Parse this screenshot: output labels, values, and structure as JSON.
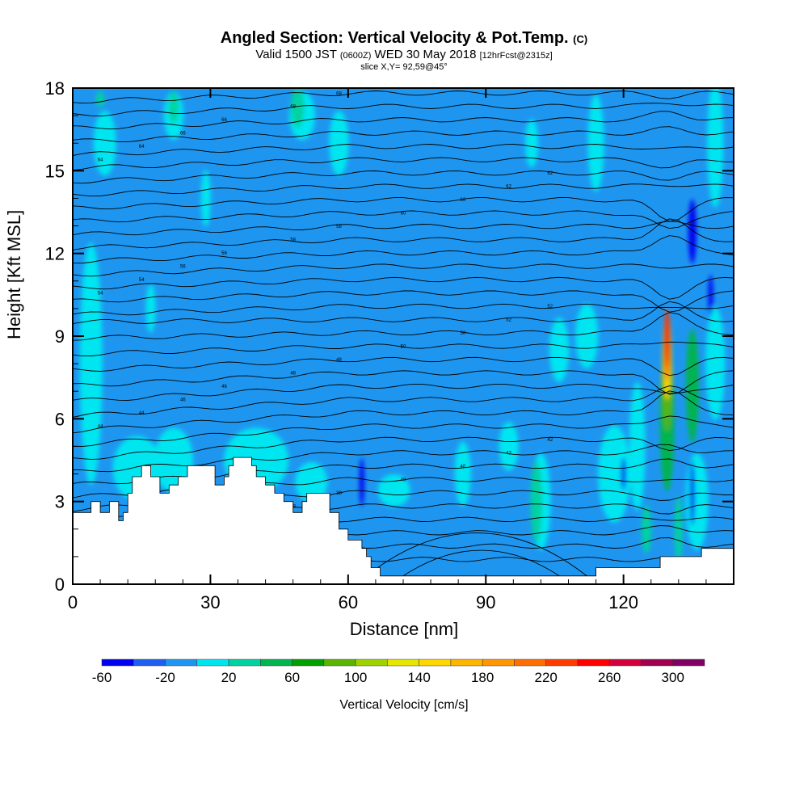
{
  "title": {
    "main": "Angled Section: Vertical Velocity & Pot.Temp.",
    "main_suffix": "(C)",
    "valid_prefix": "Valid 1500 JST",
    "valid_utc": "(0600Z)",
    "valid_date": "WED 30 May 2018",
    "forecast": "[12hrFcst@2315z]",
    "slice": "slice X,Y= 92,59@45°"
  },
  "chart_data": {
    "type": "heatmap",
    "xlabel": "Distance [nm]",
    "ylabel": "Height [Kft MSL]",
    "xlim": [
      0,
      144
    ],
    "ylim": [
      0,
      18
    ],
    "x_ticks": [
      0,
      30,
      60,
      90,
      120
    ],
    "y_ticks": [
      0,
      3,
      6,
      9,
      12,
      15,
      18
    ],
    "colorbar": {
      "label": "Vertical Velocity [cm/s]",
      "levels": [
        -60,
        -40,
        -20,
        0,
        20,
        40,
        60,
        80,
        100,
        120,
        140,
        160,
        180,
        200,
        220,
        240,
        260,
        280,
        300,
        320
      ],
      "tick_labels": [
        "-60",
        "-20",
        "20",
        "60",
        "100",
        "140",
        "180",
        "220",
        "260",
        "300"
      ],
      "colors": [
        "#0000f0",
        "#1e5ff0",
        "#1e96f0",
        "#00e6f0",
        "#00d2a0",
        "#00b450",
        "#00a000",
        "#5ab400",
        "#a0d200",
        "#e6e600",
        "#ffd700",
        "#ffb400",
        "#ff9600",
        "#ff6e00",
        "#ff3c00",
        "#ff0000",
        "#d2003c",
        "#a00050",
        "#800064"
      ]
    },
    "background_value_cm_s": -10,
    "terrain_kft": [
      [
        0,
        2.6
      ],
      [
        4,
        2.6
      ],
      [
        4,
        3
      ],
      [
        6,
        3
      ],
      [
        6,
        2.6
      ],
      [
        8,
        2.6
      ],
      [
        8,
        3
      ],
      [
        10,
        3
      ],
      [
        10,
        2.3
      ],
      [
        11,
        2.3
      ],
      [
        11,
        2.6
      ],
      [
        12,
        2.6
      ],
      [
        12,
        3.3
      ],
      [
        13,
        3.3
      ],
      [
        13,
        3.9
      ],
      [
        15,
        3.9
      ],
      [
        15,
        4.3
      ],
      [
        17,
        4.3
      ],
      [
        17,
        3.9
      ],
      [
        19,
        3.9
      ],
      [
        19,
        3.3
      ],
      [
        21,
        3.3
      ],
      [
        21,
        3.6
      ],
      [
        23,
        3.6
      ],
      [
        23,
        3.9
      ],
      [
        25,
        3.9
      ],
      [
        25,
        4.3
      ],
      [
        31,
        4.3
      ],
      [
        31,
        3.6
      ],
      [
        33,
        3.6
      ],
      [
        33,
        3.9
      ],
      [
        34,
        3.9
      ],
      [
        34,
        4.3
      ],
      [
        35,
        4.3
      ],
      [
        35,
        4.6
      ],
      [
        39,
        4.6
      ],
      [
        39,
        4.3
      ],
      [
        40,
        4.3
      ],
      [
        40,
        3.9
      ],
      [
        42,
        3.9
      ],
      [
        42,
        3.6
      ],
      [
        44,
        3.6
      ],
      [
        44,
        3.3
      ],
      [
        46,
        3.3
      ],
      [
        46,
        3
      ],
      [
        48,
        3
      ],
      [
        48,
        2.6
      ],
      [
        50,
        2.6
      ],
      [
        50,
        3
      ],
      [
        51,
        3
      ],
      [
        51,
        3.3
      ],
      [
        56,
        3.3
      ],
      [
        56,
        2.6
      ],
      [
        58,
        2.6
      ],
      [
        58,
        2
      ],
      [
        60,
        2
      ],
      [
        60,
        1.6
      ],
      [
        63,
        1.6
      ],
      [
        63,
        1.3
      ],
      [
        64,
        1.3
      ],
      [
        64,
        1
      ],
      [
        65,
        1
      ],
      [
        65,
        0.6
      ],
      [
        67,
        0.6
      ],
      [
        67,
        0.3
      ],
      [
        114,
        0.3
      ],
      [
        114,
        0.6
      ],
      [
        128,
        0.6
      ],
      [
        128,
        1
      ],
      [
        137,
        1
      ],
      [
        137,
        1.3
      ],
      [
        144,
        1.3
      ]
    ],
    "contour_labels": [
      "34",
      "36",
      "38",
      "40",
      "42",
      "44",
      "46",
      "48",
      "50",
      "52",
      "54",
      "56",
      "58",
      "60",
      "62",
      "64",
      "66",
      "68",
      "70"
    ],
    "contour_levels_count": 36
  }
}
